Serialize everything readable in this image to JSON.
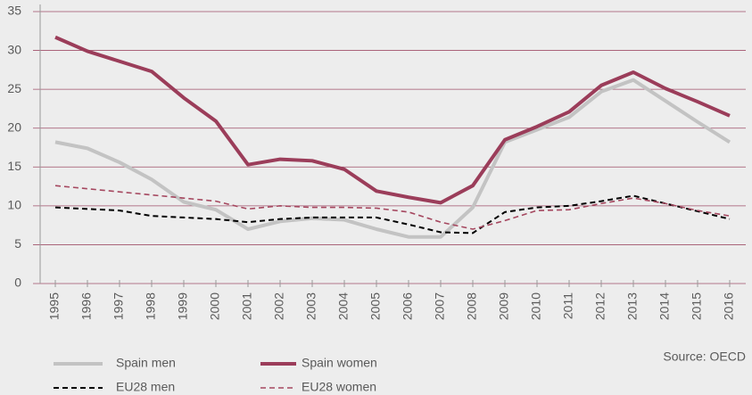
{
  "chart_data": {
    "type": "line",
    "categories": [
      "1995",
      "1996",
      "1997",
      "1998",
      "1999",
      "2000",
      "2001",
      "2002",
      "2003",
      "2004",
      "2005",
      "2006",
      "2007",
      "2008",
      "2009",
      "2010",
      "2011",
      "2012",
      "2013",
      "2014",
      "2015",
      "2016"
    ],
    "series": [
      {
        "name": "Spain men",
        "color": "#c3c3c3",
        "width": 4,
        "dash": "none",
        "values": [
          18.2,
          17.4,
          15.6,
          13.4,
          10.5,
          9.5,
          7.0,
          8.0,
          8.4,
          8.2,
          7.0,
          6.0,
          6.0,
          9.8,
          18.2,
          19.8,
          21.4,
          24.7,
          26.2,
          23.5,
          20.8,
          18.2
        ]
      },
      {
        "name": "Spain women",
        "color": "#9b3d5a",
        "width": 4,
        "dash": "none",
        "values": [
          31.7,
          29.9,
          28.6,
          27.3,
          23.9,
          20.9,
          15.3,
          16.0,
          15.8,
          14.7,
          11.9,
          11.1,
          10.4,
          12.6,
          18.5,
          20.2,
          22.1,
          25.5,
          27.2,
          25.1,
          23.4,
          21.6
        ]
      },
      {
        "name": "EU28 men",
        "color": "#000000",
        "width": 2,
        "dash": "6 4",
        "values": [
          9.8,
          9.6,
          9.4,
          8.7,
          8.5,
          8.3,
          7.9,
          8.3,
          8.5,
          8.5,
          8.5,
          7.6,
          6.6,
          6.5,
          9.2,
          9.8,
          10.0,
          10.6,
          11.3,
          10.3,
          9.3,
          8.3
        ]
      },
      {
        "name": "EU28 women",
        "color": "#a5475f",
        "width": 1.6,
        "dash": "6 4",
        "values": [
          12.6,
          12.2,
          11.8,
          11.4,
          11.0,
          10.6,
          9.6,
          10.0,
          9.8,
          9.8,
          9.7,
          9.2,
          7.9,
          7.0,
          8.1,
          9.4,
          9.5,
          10.3,
          11.0,
          10.3,
          9.4,
          8.7
        ]
      }
    ],
    "ylim": [
      0,
      35
    ],
    "yticks": [
      0,
      5,
      10,
      15,
      20,
      25,
      30,
      35
    ],
    "grid": true,
    "grid_color": "#a0506a",
    "legend": "bottom",
    "source": "Source: OECD"
  }
}
